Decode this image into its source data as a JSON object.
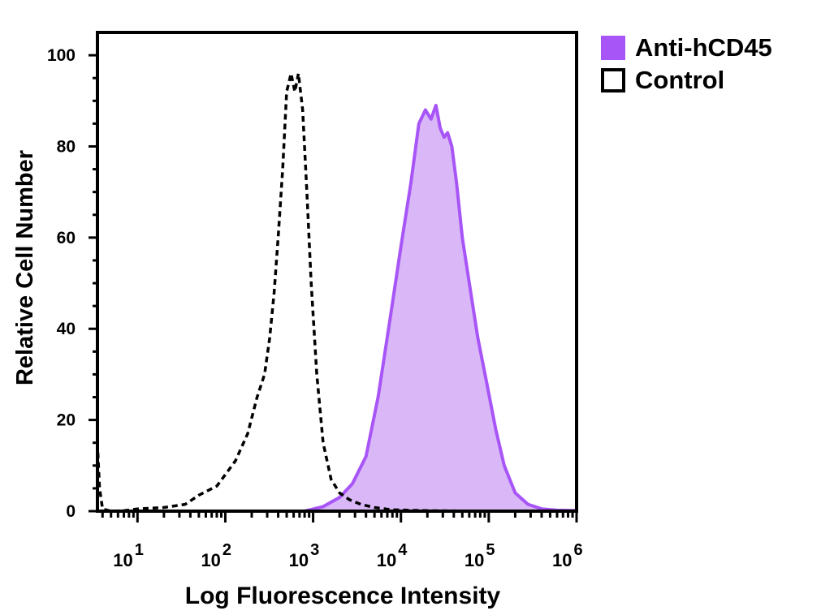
{
  "chart_data": {
    "type": "area",
    "xlabel": "Log Fluorescence Intensity",
    "ylabel": "Relative Cell Number",
    "x_scale": "log",
    "xlim": [
      3.5,
      1000000
    ],
    "ylim": [
      0,
      105
    ],
    "x_ticks": [
      {
        "value": 10,
        "base": "10",
        "exp": "1"
      },
      {
        "value": 100,
        "base": "10",
        "exp": "2"
      },
      {
        "value": 1000,
        "base": "10",
        "exp": "3"
      },
      {
        "value": 10000,
        "base": "10",
        "exp": "4"
      },
      {
        "value": 100000,
        "base": "10",
        "exp": "5"
      },
      {
        "value": 1000000,
        "base": "10",
        "exp": "6"
      }
    ],
    "y_ticks": [
      "0",
      "20",
      "40",
      "60",
      "80",
      "100"
    ],
    "grid": false,
    "legend_position": "top-right-outside",
    "series": [
      {
        "name": "Anti-hCD45",
        "style": "filled",
        "stroke_color": "#a855f7",
        "fill_color": "#dab8f7",
        "x": [
          3.5,
          200,
          800,
          1300,
          2000,
          2800,
          4000,
          5500,
          7500,
          10000,
          13000,
          16000,
          19000,
          22000,
          25000,
          28000,
          31000,
          34000,
          38000,
          43000,
          50000,
          60000,
          75000,
          95000,
          120000,
          150000,
          200000,
          280000,
          400000,
          600000,
          1000000
        ],
        "values": [
          0,
          0,
          0,
          1,
          3,
          6,
          12,
          25,
          42,
          58,
          72,
          85,
          88,
          86,
          89,
          84,
          82,
          83,
          80,
          72,
          60,
          50,
          38,
          28,
          18,
          10,
          4,
          1.5,
          0.5,
          0.2,
          0.1
        ]
      },
      {
        "name": "Control",
        "style": "dashed",
        "stroke_color": "#000000",
        "fill_color": "none",
        "x": [
          3.5,
          3.7,
          4,
          5,
          7,
          10,
          20,
          35,
          50,
          80,
          130,
          180,
          230,
          280,
          320,
          360,
          400,
          450,
          500,
          560,
          620,
          680,
          760,
          850,
          950,
          1100,
          1300,
          1600,
          2000,
          2600,
          3500,
          5000,
          8000,
          20000,
          100000,
          1000000
        ],
        "values": [
          15,
          5,
          0.5,
          0,
          0.1,
          0.5,
          0.8,
          1.5,
          3.5,
          5.5,
          11,
          17,
          25,
          30,
          38,
          48,
          60,
          75,
          92,
          96,
          92,
          96,
          88,
          70,
          50,
          30,
          15,
          7,
          4,
          2.5,
          1.5,
          0.8,
          0.3,
          0.1,
          0,
          0
        ]
      }
    ]
  }
}
